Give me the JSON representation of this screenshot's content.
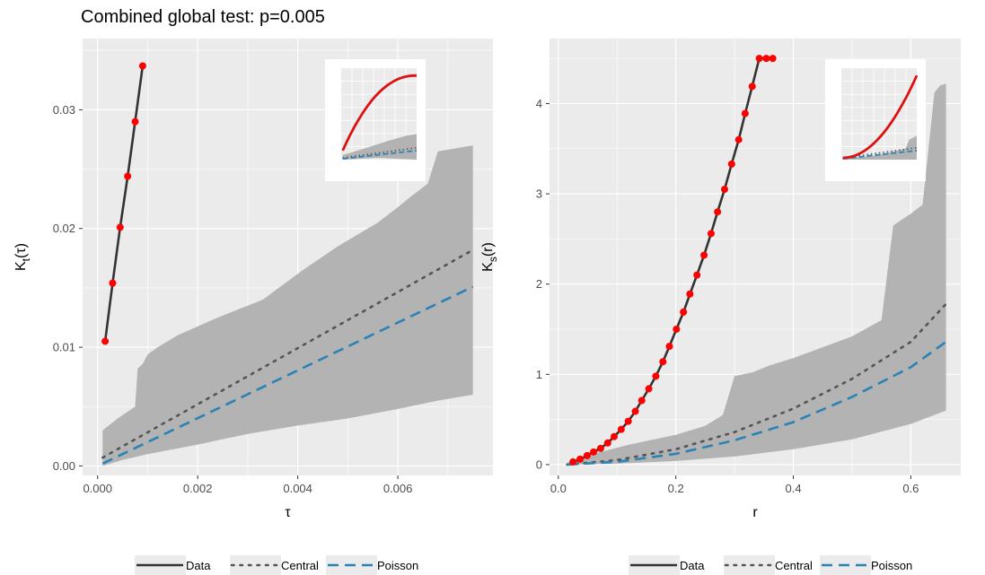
{
  "title": "Combined global test: p=0.005",
  "legend": [
    {
      "label": "Data",
      "style": "solid",
      "color": "#333333"
    },
    {
      "label": "Central",
      "style": "dotted",
      "color": "#555555"
    },
    {
      "label": "Poisson",
      "style": "dashed",
      "color": "#2b82b4"
    }
  ],
  "colors": {
    "panel": "#ebebeb",
    "grid": "#ffffff",
    "band": "#b3b3b3",
    "points": "#ff0000",
    "data_line": "#333333",
    "central_line": "#555555",
    "poisson_line": "#2b82b4"
  },
  "chart_data": [
    {
      "type": "line",
      "xlabel": "τ",
      "ylabel": "K_t(τ)",
      "xlim": [
        -0.0003,
        0.0079
      ],
      "ylim": [
        -0.0008,
        0.036
      ],
      "xticks": [
        0,
        0.002,
        0.004,
        0.006
      ],
      "xtick_labels": [
        "0.000",
        "0.002",
        "0.004",
        "0.006"
      ],
      "yticks": [
        0,
        0.01,
        0.02,
        0.03
      ],
      "ytick_labels": [
        "0.00",
        "0.01",
        "0.02",
        "0.03"
      ],
      "data": {
        "x": [
          0.00015,
          0.0003,
          0.00045,
          0.0006,
          0.00075,
          0.0009
        ],
        "y": [
          0.0105,
          0.0154,
          0.0201,
          0.0244,
          0.029,
          0.0337
        ]
      },
      "band_upper": {
        "x": [
          0.0001,
          0.0004,
          0.00075,
          0.0008,
          0.0009,
          0.001,
          0.0012,
          0.0016,
          0.0024,
          0.0033,
          0.0041,
          0.0048,
          0.0056,
          0.006,
          0.0062,
          0.0066,
          0.0068,
          0.0075
        ],
        "y": [
          0.003,
          0.004,
          0.005,
          0.0082,
          0.0086,
          0.0094,
          0.01,
          0.011,
          0.0125,
          0.014,
          0.0165,
          0.0185,
          0.0205,
          0.0218,
          0.0225,
          0.0238,
          0.0265,
          0.027
        ]
      },
      "band_lower": {
        "x": [
          0.0001,
          0.0005,
          0.001,
          0.002,
          0.003,
          0.004,
          0.005,
          0.006,
          0.0068,
          0.0075
        ],
        "y": [
          0.0,
          0.0005,
          0.001,
          0.0018,
          0.0027,
          0.0034,
          0.004,
          0.0048,
          0.0055,
          0.006
        ]
      },
      "central": {
        "x": [
          0.0001,
          0.0075
        ],
        "y": [
          0.0007,
          0.0182
        ]
      },
      "poisson": {
        "x": [
          0.0001,
          0.0075
        ],
        "y": [
          0.0002,
          0.0151
        ]
      },
      "inset": {
        "type": "line",
        "series": [
          "Data",
          "band",
          "Central",
          "Poisson"
        ]
      }
    },
    {
      "type": "line",
      "xlabel": "r",
      "ylabel": "K_s(r)",
      "xlim": [
        -0.015,
        0.685
      ],
      "ylim": [
        -0.12,
        4.72
      ],
      "xticks": [
        0,
        0.2,
        0.4,
        0.6
      ],
      "xtick_labels": [
        "0.0",
        "0.2",
        "0.4",
        "0.6"
      ],
      "yticks": [
        0,
        1,
        2,
        3,
        4
      ],
      "ytick_labels": [
        "0",
        "1",
        "2",
        "3",
        "4"
      ],
      "data": {
        "x": [
          0.025,
          0.037,
          0.049,
          0.06,
          0.072,
          0.084,
          0.095,
          0.107,
          0.119,
          0.131,
          0.142,
          0.154,
          0.166,
          0.178,
          0.189,
          0.201,
          0.213,
          0.224,
          0.236,
          0.248,
          0.26,
          0.271,
          0.283,
          0.295,
          0.307,
          0.318,
          0.33,
          0.342,
          0.354,
          0.365
        ],
        "y": [
          0.03,
          0.06,
          0.1,
          0.14,
          0.18,
          0.24,
          0.31,
          0.39,
          0.48,
          0.59,
          0.71,
          0.84,
          0.98,
          1.14,
          1.31,
          1.5,
          1.69,
          1.89,
          2.1,
          2.32,
          2.56,
          2.8,
          3.05,
          3.33,
          3.6,
          3.89,
          4.19,
          4.5,
          4.5,
          4.5
        ]
      },
      "band_upper": {
        "x": [
          0.015,
          0.06,
          0.12,
          0.2,
          0.25,
          0.28,
          0.3,
          0.33,
          0.36,
          0.4,
          0.45,
          0.5,
          0.55,
          0.57,
          0.6,
          0.62,
          0.64,
          0.65,
          0.66
        ],
        "y": [
          0.02,
          0.12,
          0.22,
          0.33,
          0.43,
          0.55,
          0.98,
          1.02,
          1.1,
          1.18,
          1.3,
          1.42,
          1.6,
          2.65,
          2.78,
          2.88,
          4.12,
          4.2,
          4.22
        ]
      },
      "band_lower": {
        "x": [
          0.015,
          0.1,
          0.2,
          0.3,
          0.4,
          0.5,
          0.6,
          0.66
        ],
        "y": [
          0.0,
          0.01,
          0.04,
          0.09,
          0.17,
          0.28,
          0.45,
          0.6
        ]
      },
      "central": {
        "x": [
          0.015,
          0.1,
          0.2,
          0.3,
          0.4,
          0.5,
          0.6,
          0.66
        ],
        "y": [
          0.0,
          0.05,
          0.17,
          0.36,
          0.62,
          0.95,
          1.36,
          1.78
        ]
      },
      "poisson": {
        "x": [
          0.015,
          0.1,
          0.2,
          0.3,
          0.4,
          0.5,
          0.6,
          0.66
        ],
        "y": [
          0.0,
          0.03,
          0.12,
          0.27,
          0.47,
          0.75,
          1.08,
          1.36
        ]
      },
      "inset": {
        "type": "line",
        "series": [
          "Data",
          "band",
          "Central",
          "Poisson"
        ]
      }
    }
  ]
}
